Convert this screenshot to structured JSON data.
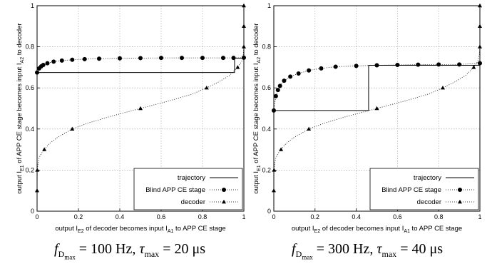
{
  "chart_data": [
    {
      "type": "line",
      "xlabel_html": "output I<tspan font-size='7' dy='3'>E2</tspan><tspan dy='-3'> of decoder becomes input I</tspan><tspan font-size='7' dy='3'>A1</tspan><tspan dy='-3'> to APP CE stage</tspan>",
      "ylabel_html": "output I<tspan font-size='7' dy='3'>E1</tspan><tspan dy='-3'> of APP CE stage becomes input I</tspan><tspan font-size='7' dy='3'>A2</tspan><tspan dy='-3'> to decoder</tspan>",
      "xlim": [
        0,
        1
      ],
      "ylim": [
        0,
        1
      ],
      "xticks": [
        "0",
        "0.2",
        "0.4",
        "0.6",
        "0.8",
        "1"
      ],
      "yticks": [
        "0",
        "0.2",
        "0.4",
        "0.6",
        "0.8",
        "1"
      ],
      "grid": true,
      "legend_position": "bottom-right",
      "caption_parts": {
        "f": "f",
        "sub_d": "D",
        "sub_max": "max",
        "eq1": " = 100 Hz, ",
        "tau": "τ",
        "sub_max2": "max",
        "eq2": " = 20 μs"
      },
      "series": [
        {
          "name": "trajectory",
          "style": "solid",
          "x": [
            0,
            0,
            0.955,
            0.955,
            1,
            1
          ],
          "y": [
            0,
            0.675,
            0.675,
            0.745,
            0.745,
            0.75
          ]
        },
        {
          "name": "Blind APP CE stage",
          "style": "dotted-circle",
          "x": [
            0,
            0.01,
            0.02,
            0.03,
            0.05,
            0.08,
            0.12,
            0.17,
            0.23,
            0.3,
            0.4,
            0.5,
            0.6,
            0.7,
            0.8,
            0.9,
            0.95,
            1
          ],
          "y": [
            0.675,
            0.695,
            0.705,
            0.712,
            0.72,
            0.728,
            0.733,
            0.737,
            0.74,
            0.742,
            0.744,
            0.745,
            0.746,
            0.746,
            0.746,
            0.746,
            0.746,
            0.747
          ]
        },
        {
          "name": "decoder",
          "style": "dotted-triangle",
          "x": [
            0,
            0.001,
            0.004,
            0.01,
            0.02,
            0.035,
            0.06,
            0.1,
            0.17,
            0.25,
            0.35,
            0.5,
            0.65,
            0.75,
            0.82,
            0.88,
            0.93,
            0.97,
            0.99,
            0.997,
            1,
            1,
            1
          ],
          "y": [
            0.1,
            0.2,
            0.23,
            0.26,
            0.28,
            0.3,
            0.33,
            0.36,
            0.4,
            0.43,
            0.46,
            0.5,
            0.54,
            0.57,
            0.6,
            0.63,
            0.66,
            0.7,
            0.73,
            0.76,
            0.8,
            0.9,
            1.0
          ]
        }
      ]
    },
    {
      "type": "line",
      "xlabel_html": "output I<tspan font-size='7' dy='3'>E2</tspan><tspan dy='-3'> of decoder becomes input I</tspan><tspan font-size='7' dy='3'>A1</tspan><tspan dy='-3'> to APP CE stage</tspan>",
      "ylabel_html": "output I<tspan font-size='7' dy='3'>E1</tspan><tspan dy='-3'> of APP CE stage becomes input I</tspan><tspan font-size='7' dy='3'>A2</tspan><tspan dy='-3'> to decoder</tspan>",
      "xlim": [
        0,
        1
      ],
      "ylim": [
        0,
        1
      ],
      "xticks": [
        "0",
        "0.2",
        "0.4",
        "0.6",
        "0.8",
        "1"
      ],
      "yticks": [
        "0",
        "0.2",
        "0.4",
        "0.6",
        "0.8",
        "1"
      ],
      "grid": true,
      "legend_position": "bottom-right",
      "caption_parts": {
        "f": "f",
        "sub_d": "D",
        "sub_max": "max",
        "eq1": " = 300 Hz, ",
        "tau": "τ",
        "sub_max2": "max",
        "eq2": " = 40 μs"
      },
      "series": [
        {
          "name": "trajectory",
          "style": "solid",
          "x": [
            0,
            0,
            0.46,
            0.46,
            1,
            1
          ],
          "y": [
            0,
            0.49,
            0.49,
            0.71,
            0.71,
            0.72
          ]
        },
        {
          "name": "Blind APP CE stage",
          "style": "dotted-circle",
          "x": [
            0,
            0.01,
            0.02,
            0.03,
            0.05,
            0.08,
            0.12,
            0.17,
            0.23,
            0.3,
            0.4,
            0.5,
            0.6,
            0.7,
            0.8,
            0.9,
            1
          ],
          "y": [
            0.49,
            0.56,
            0.59,
            0.61,
            0.635,
            0.655,
            0.67,
            0.685,
            0.695,
            0.703,
            0.707,
            0.71,
            0.712,
            0.713,
            0.714,
            0.714,
            0.72
          ]
        },
        {
          "name": "decoder",
          "style": "dotted-triangle",
          "x": [
            0,
            0.001,
            0.004,
            0.01,
            0.02,
            0.035,
            0.06,
            0.1,
            0.17,
            0.25,
            0.35,
            0.5,
            0.65,
            0.75,
            0.82,
            0.88,
            0.93,
            0.97,
            0.99,
            0.997,
            1,
            1,
            1
          ],
          "y": [
            0.1,
            0.2,
            0.23,
            0.26,
            0.28,
            0.3,
            0.33,
            0.36,
            0.4,
            0.43,
            0.46,
            0.5,
            0.54,
            0.57,
            0.6,
            0.63,
            0.66,
            0.7,
            0.73,
            0.76,
            0.8,
            0.9,
            1.0
          ]
        }
      ]
    }
  ]
}
